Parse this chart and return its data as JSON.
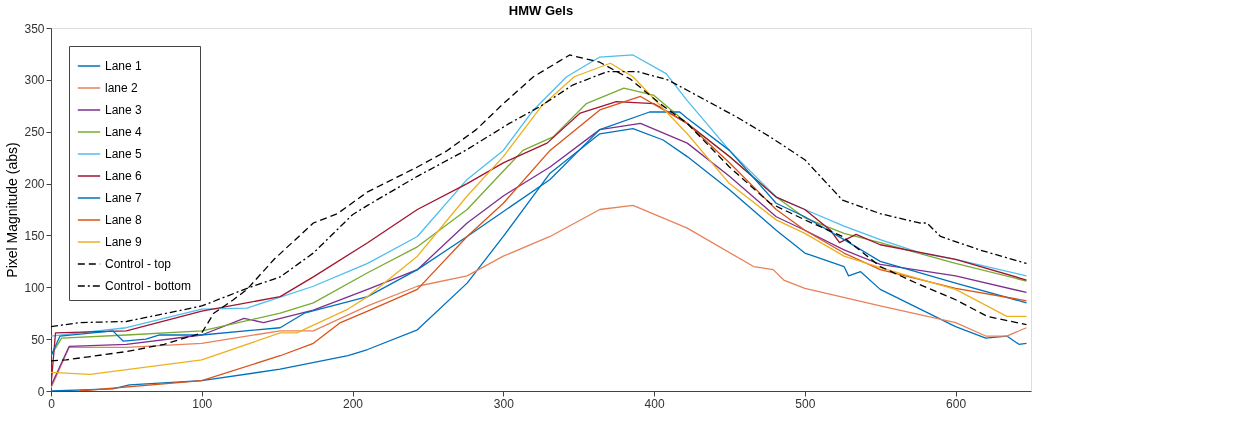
{
  "chart_data": {
    "type": "line",
    "title": "HMW Gels",
    "ylabel": "Pixel Magnitude (abs)",
    "xlim": [
      0,
      650
    ],
    "xticks": [
      0,
      100,
      200,
      300,
      400,
      500,
      600
    ],
    "ylim": [
      0,
      350
    ],
    "yticks": [
      0,
      50,
      100,
      150,
      200,
      250,
      300,
      350
    ],
    "grid": false,
    "legend": "top left",
    "series": [
      {
        "name": "Lane 1",
        "color": "#0072bd",
        "line_style": "solid",
        "x": [
          0,
          41,
          52,
          100,
          152,
          197,
          210,
          243,
          276,
          300,
          331,
          364,
          386,
          406,
          422,
          450,
          481,
          500,
          526,
          529,
          537,
          550,
          600,
          620,
          634,
          642,
          647
        ],
        "values": [
          0,
          2,
          6,
          10,
          21,
          34,
          40,
          59,
          104,
          149,
          210,
          248,
          253,
          242,
          226,
          194,
          155,
          133,
          120,
          111,
          115,
          98,
          62,
          51,
          53,
          45,
          46
        ]
      },
      {
        "name": "lane 2",
        "color": "#e8825a",
        "line_style": "solid",
        "x": [
          0,
          12,
          50,
          100,
          152,
          174,
          210,
          243,
          276,
          300,
          331,
          364,
          386,
          422,
          466,
          479,
          486,
          500,
          550,
          600,
          620,
          634,
          647
        ],
        "values": [
          3,
          42,
          42,
          46,
          58,
          58,
          82,
          101,
          111,
          130,
          149,
          175,
          179,
          157,
          120,
          117,
          107,
          99,
          82,
          66,
          53,
          53,
          61
        ]
      },
      {
        "name": "Lane 3",
        "color": "#7e2f8e",
        "line_style": "solid",
        "x": [
          0,
          12,
          50,
          100,
          128,
          141,
          174,
          210,
          243,
          276,
          300,
          331,
          364,
          391,
          422,
          450,
          481,
          500,
          526,
          550,
          600,
          647
        ],
        "values": [
          5,
          43,
          45,
          54,
          70,
          66,
          78,
          98,
          117,
          162,
          188,
          216,
          252,
          258,
          239,
          207,
          168,
          155,
          136,
          122,
          111,
          95
        ]
      },
      {
        "name": "Lane 4",
        "color": "#77ac30",
        "line_style": "solid",
        "x": [
          0,
          7,
          50,
          100,
          152,
          174,
          210,
          243,
          276,
          313,
          333,
          355,
          380,
          400,
          422,
          450,
          481,
          500,
          526,
          550,
          600,
          647
        ],
        "values": [
          34,
          51,
          54,
          58,
          75,
          85,
          114,
          139,
          175,
          232,
          245,
          277,
          292,
          285,
          258,
          226,
          187,
          167,
          152,
          143,
          123,
          106
        ]
      },
      {
        "name": "Lane 5",
        "color": "#4dbeee",
        "line_style": "solid",
        "x": [
          0,
          19,
          50,
          100,
          130,
          174,
          210,
          243,
          276,
          300,
          320,
          342,
          364,
          386,
          408,
          422,
          450,
          481,
          500,
          526,
          550,
          577,
          600,
          647
        ],
        "values": [
          53,
          56,
          61,
          79,
          80,
          101,
          123,
          149,
          204,
          232,
          271,
          303,
          322,
          324,
          306,
          280,
          232,
          187,
          175,
          159,
          146,
          133,
          127,
          111
        ]
      },
      {
        "name": "Lane 6",
        "color": "#a2142f",
        "line_style": "solid",
        "x": [
          0,
          3,
          50,
          100,
          152,
          174,
          210,
          243,
          276,
          300,
          329,
          351,
          375,
          400,
          422,
          450,
          481,
          500,
          517,
          523,
          534,
          550,
          600,
          647
        ],
        "values": [
          5,
          56,
          58,
          77,
          91,
          110,
          143,
          175,
          200,
          220,
          239,
          268,
          279,
          277,
          258,
          226,
          187,
          175,
          155,
          143,
          151,
          141,
          127,
          107
        ]
      },
      {
        "name": "Lane 7",
        "color": "#0072bd",
        "line_style": "solid",
        "x": [
          0,
          6,
          41,
          48,
          63,
          72,
          100,
          152,
          168,
          210,
          243,
          276,
          302,
          331,
          364,
          397,
          417,
          422,
          450,
          481,
          500,
          526,
          550,
          600,
          647
        ],
        "values": [
          34,
          53,
          58,
          48,
          50,
          54,
          54,
          61,
          75,
          91,
          117,
          149,
          175,
          204,
          252,
          269,
          269,
          263,
          232,
          181,
          168,
          146,
          125,
          104,
          85
        ]
      },
      {
        "name": "Lane 8",
        "color": "#d95319",
        "line_style": "solid",
        "x": [
          19,
          100,
          152,
          174,
          192,
          210,
          243,
          276,
          300,
          331,
          364,
          391,
          422,
          450,
          481,
          500,
          526,
          550,
          600,
          647
        ],
        "values": [
          0,
          10,
          34,
          46,
          66,
          77,
          98,
          149,
          181,
          232,
          271,
          284,
          258,
          220,
          175,
          155,
          133,
          117,
          99,
          87
        ]
      },
      {
        "name": "Lane 9",
        "color": "#edb120",
        "line_style": "solid",
        "x": [
          0,
          26,
          100,
          152,
          163,
          197,
          210,
          243,
          276,
          300,
          325,
          347,
          371,
          386,
          422,
          450,
          481,
          500,
          526,
          550,
          600,
          634,
          647
        ],
        "values": [
          18,
          16,
          30,
          56,
          56,
          79,
          91,
          130,
          188,
          226,
          274,
          303,
          316,
          303,
          248,
          200,
          165,
          152,
          130,
          119,
          98,
          72,
          72
        ]
      },
      {
        "name": "Control - top",
        "color": "#000000",
        "line_style": "dashed",
        "x": [
          0,
          10,
          25,
          50,
          75,
          100,
          108,
          121,
          130,
          148,
          174,
          190,
          210,
          243,
          262,
          282,
          300,
          320,
          344,
          364,
          384,
          404,
          422,
          450,
          477,
          500,
          525,
          550,
          574,
          600,
          621,
          647
        ],
        "values": [
          29,
          30,
          33,
          38,
          45,
          56,
          75,
          88,
          98,
          127,
          162,
          171,
          192,
          216,
          231,
          252,
          277,
          303,
          324,
          317,
          301,
          277,
          258,
          216,
          181,
          165,
          149,
          120,
          104,
          88,
          72,
          64
        ]
      },
      {
        "name": "Control - bottom",
        "color": "#000000",
        "line_style": "dashdot",
        "x": [
          0,
          19,
          50,
          100,
          123,
          134,
          152,
          174,
          200,
          210,
          243,
          275,
          304,
          324,
          346,
          369,
          389,
          409,
          422,
          455,
          477,
          500,
          525,
          550,
          576,
          581,
          590,
          616,
          647
        ],
        "values": [
          62,
          66,
          67,
          82,
          95,
          101,
          110,
          133,
          170,
          179,
          207,
          232,
          258,
          274,
          295,
          308,
          308,
          300,
          290,
          264,
          245,
          223,
          184,
          171,
          162,
          162,
          149,
          136,
          123
        ]
      }
    ]
  }
}
